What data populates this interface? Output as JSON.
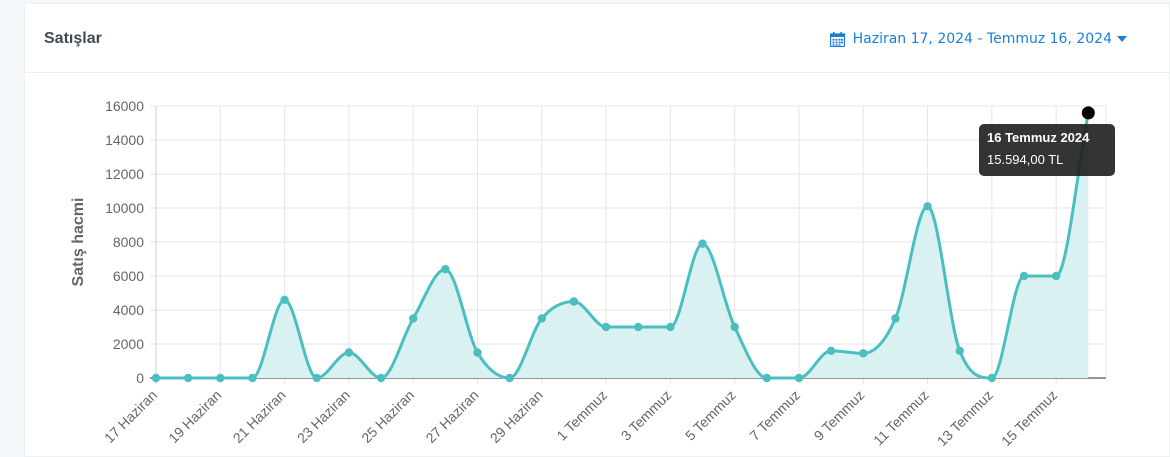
{
  "header": {
    "title": "Satışlar",
    "date_range": "Haziran 17, 2024 - Temmuz 16, 2024",
    "calendar_icon": "calendar-icon"
  },
  "tooltip": {
    "title": "16 Temmuz 2024",
    "value": "15.594,00 TL"
  },
  "chart_data": {
    "type": "area",
    "ylabel": "Satış hacmi",
    "xlabel": "",
    "ylim": [
      0,
      16000
    ],
    "yticks": [
      0,
      2000,
      4000,
      6000,
      8000,
      10000,
      12000,
      14000,
      16000
    ],
    "x": [
      "17 Haziran",
      "18 Haziran",
      "19 Haziran",
      "20 Haziran",
      "21 Haziran",
      "22 Haziran",
      "23 Haziran",
      "24 Haziran",
      "25 Haziran",
      "26 Haziran",
      "27 Haziran",
      "28 Haziran",
      "29 Haziran",
      "30 Haziran",
      "1 Temmuz",
      "2 Temmuz",
      "3 Temmuz",
      "4 Temmuz",
      "5 Temmuz",
      "6 Temmuz",
      "7 Temmuz",
      "8 Temmuz",
      "9 Temmuz",
      "10 Temmuz",
      "11 Temmuz",
      "12 Temmuz",
      "13 Temmuz",
      "14 Temmuz",
      "15 Temmuz",
      "16 Temmuz"
    ],
    "x_tick_labels": [
      "17 Haziran",
      "19 Haziran",
      "21 Haziran",
      "23 Haziran",
      "25 Haziran",
      "27 Haziran",
      "29 Haziran",
      "1 Temmuz",
      "3 Temmuz",
      "5 Temmuz",
      "7 Temmuz",
      "9 Temmuz",
      "11 Temmuz",
      "13 Temmuz",
      "15 Temmuz"
    ],
    "values": [
      0,
      0,
      0,
      0,
      4600,
      0,
      1500,
      0,
      3500,
      6400,
      1500,
      0,
      3500,
      4500,
      3000,
      3000,
      3000,
      7900,
      3000,
      0,
      0,
      1600,
      1450,
      3500,
      10100,
      1600,
      0,
      6000,
      6000,
      15594
    ],
    "grid": true,
    "colors": {
      "line": "#4bbfc0",
      "fill": "#daf1f1",
      "point": "#4bbfc0",
      "active_point": "#000000",
      "grid": "#e6e6e6",
      "axis": "#555555",
      "tick_text": "#666666"
    }
  }
}
